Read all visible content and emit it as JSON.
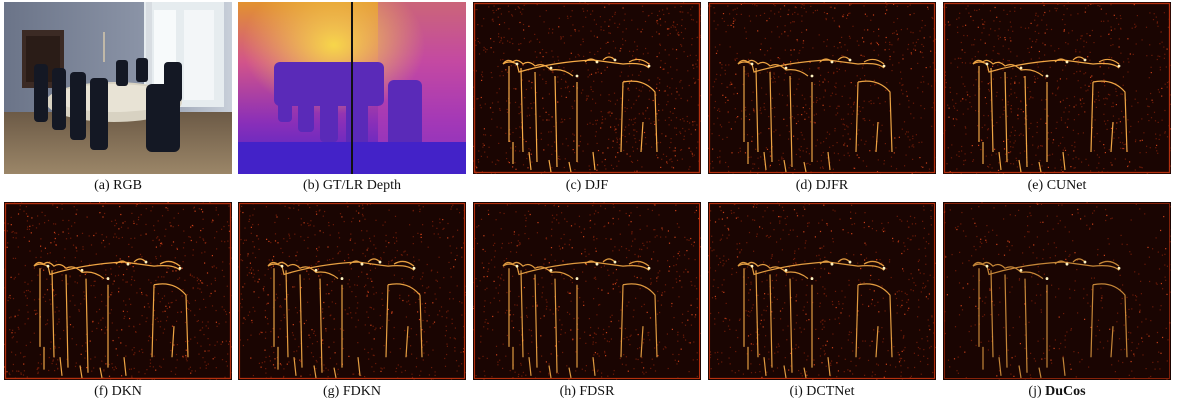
{
  "figure": {
    "panels": [
      {
        "id": "a",
        "caption_prefix": "(a)",
        "caption": "RGB",
        "bold": false,
        "kind": "rgb"
      },
      {
        "id": "b",
        "caption_prefix": "(b)",
        "caption": "GT/LR Depth",
        "bold": false,
        "kind": "depth"
      },
      {
        "id": "c",
        "caption_prefix": "(c)",
        "caption": "DJF",
        "bold": false,
        "kind": "error",
        "level": 0.9
      },
      {
        "id": "d",
        "caption_prefix": "(d)",
        "caption": "DJFR",
        "bold": false,
        "kind": "error",
        "level": 0.8
      },
      {
        "id": "e",
        "caption_prefix": "(e)",
        "caption": "CUNet",
        "bold": false,
        "kind": "error",
        "level": 0.85
      },
      {
        "id": "f",
        "caption_prefix": "(f)",
        "caption": "DKN",
        "bold": false,
        "kind": "error",
        "level": 0.85
      },
      {
        "id": "g",
        "caption_prefix": "(g)",
        "caption": "FDKN",
        "bold": false,
        "kind": "error",
        "level": 0.75
      },
      {
        "id": "h",
        "caption_prefix": "(h)",
        "caption": "FDSR",
        "bold": false,
        "kind": "error",
        "level": 0.7
      },
      {
        "id": "i",
        "caption_prefix": "(i)",
        "caption": "DCTNet",
        "bold": false,
        "kind": "error",
        "level": 0.72
      },
      {
        "id": "j",
        "caption_prefix": "(j)",
        "caption": "DuCos",
        "bold": true,
        "kind": "error",
        "level": 0.45
      }
    ]
  }
}
